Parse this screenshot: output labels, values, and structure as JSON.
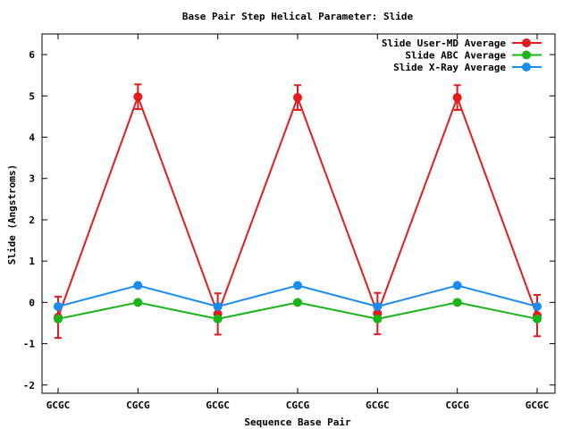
{
  "chart_data": {
    "type": "line",
    "title": "Base Pair Step Helical Parameter: Slide",
    "xlabel": "Sequence Base Pair",
    "ylabel": "Slide (Angstroms)",
    "categories": [
      "GCGC",
      "CGCG",
      "GCGC",
      "CGCG",
      "GCGC",
      "CGCG",
      "GCGC"
    ],
    "ylim": [
      -2.2,
      6.5
    ],
    "yticks": [
      -2,
      -1,
      0,
      1,
      2,
      3,
      4,
      5,
      6
    ],
    "grid": false,
    "legend_position": "top-right",
    "series": [
      {
        "name": "Slide User-MD Average",
        "color": "#e41a1c",
        "values": [
          -0.36,
          4.98,
          -0.28,
          4.96,
          -0.27,
          4.96,
          -0.32
        ],
        "errors": [
          0.5,
          0.3,
          0.5,
          0.3,
          0.5,
          0.3,
          0.5
        ]
      },
      {
        "name": "Slide ABC Average",
        "color": "#18b418",
        "values": [
          -0.4,
          0.0,
          -0.4,
          0.0,
          -0.4,
          0.0,
          -0.4
        ]
      },
      {
        "name": "Slide X-Ray Average",
        "color": "#1a8cf0",
        "values": [
          -0.1,
          0.41,
          -0.1,
          0.41,
          -0.1,
          0.41,
          -0.1
        ]
      }
    ]
  }
}
